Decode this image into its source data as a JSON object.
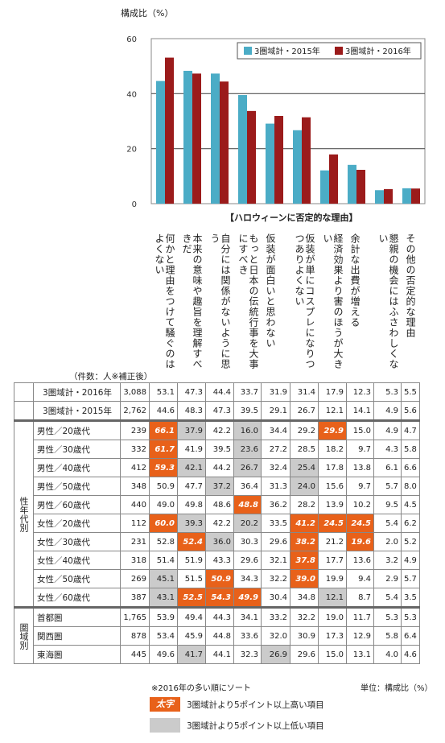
{
  "chart_data": {
    "type": "bar",
    "ylabel": "構成比（%）",
    "ylim": [
      0,
      60
    ],
    "yticks": [
      0,
      20,
      40,
      60
    ],
    "grid": true,
    "legend_placement": "top-right",
    "series": [
      {
        "name": "3圏域計・2015年",
        "color": "#4bacc6",
        "values": [
          44.6,
          48.3,
          47.3,
          39.5,
          29.1,
          26.7,
          12.1,
          14.1,
          4.9,
          5.6
        ]
      },
      {
        "name": "3圏域計・2016年",
        "color": "#9b1b1b",
        "values": [
          53.1,
          47.3,
          44.4,
          33.7,
          31.9,
          31.4,
          17.9,
          12.3,
          5.3,
          5.5
        ]
      }
    ],
    "category_group_label": "【ハロウィーンに否定的な理由】",
    "categories": [
      "何かと理由をつけて騒ぐのはよくない",
      "本来の意味や趣旨を理解すべきだ",
      "自分には関係がないように思う",
      "もっと日本の伝統行事を大事にすべき",
      "仮装が面白いと思わない",
      "仮装が単にコスプレになりつつありよくない",
      "経済効果より害のほうが大きい",
      "余計な出費が増える",
      "懇親の機会にはふさわしくない",
      "その他の否定的な理由"
    ]
  },
  "table": {
    "count_header": "（件数：人※補正後）",
    "rows": [
      {
        "label": "3圏域計・2016年",
        "count": "3,088",
        "values": [
          "53.1",
          "47.3",
          "44.4",
          "33.7",
          "31.9",
          "31.4",
          "17.9",
          "12.3",
          "5.3",
          "5.5"
        ],
        "marks": [
          "",
          "",
          "",
          "",
          "",
          "",
          "",
          "",
          "",
          ""
        ]
      },
      {
        "label": "3圏域計・2015年",
        "count": "2,762",
        "values": [
          "44.6",
          "48.3",
          "47.3",
          "39.5",
          "29.1",
          "26.7",
          "12.1",
          "14.1",
          "4.9",
          "5.6"
        ],
        "marks": [
          "",
          "",
          "",
          "",
          "",
          "",
          "",
          "",
          "",
          ""
        ]
      },
      {
        "group": "性年代別",
        "label": "男性／20歳代",
        "count": "239",
        "values": [
          "66.1",
          "37.9",
          "42.2",
          "16.0",
          "34.4",
          "29.2",
          "29.9",
          "15.0",
          "4.9",
          "4.7"
        ],
        "marks": [
          "h",
          "l",
          "",
          "l",
          "",
          "",
          "h",
          "",
          "",
          ""
        ]
      },
      {
        "label": "男性／30歳代",
        "count": "332",
        "values": [
          "61.7",
          "41.9",
          "39.5",
          "23.6",
          "27.2",
          "28.5",
          "18.2",
          "9.7",
          "4.3",
          "5.8"
        ],
        "marks": [
          "h",
          "",
          "",
          "l",
          "",
          "",
          "",
          "",
          "",
          ""
        ]
      },
      {
        "label": "男性／40歳代",
        "count": "412",
        "values": [
          "59.3",
          "42.1",
          "44.2",
          "26.7",
          "32.4",
          "25.4",
          "17.8",
          "13.8",
          "6.1",
          "6.6"
        ],
        "marks": [
          "h",
          "l",
          "",
          "l",
          "",
          "l",
          "",
          "",
          "",
          ""
        ]
      },
      {
        "label": "男性／50歳代",
        "count": "348",
        "values": [
          "50.9",
          "47.7",
          "37.2",
          "36.4",
          "31.3",
          "24.0",
          "15.6",
          "9.7",
          "5.7",
          "8.0"
        ],
        "marks": [
          "",
          "",
          "l",
          "",
          "",
          "l",
          "",
          "",
          "",
          ""
        ]
      },
      {
        "label": "男性／60歳代",
        "count": "440",
        "values": [
          "49.0",
          "49.8",
          "48.6",
          "48.8",
          "36.2",
          "28.2",
          "13.9",
          "10.2",
          "9.5",
          "4.5"
        ],
        "marks": [
          "",
          "",
          "",
          "h",
          "",
          "",
          "",
          "",
          "",
          ""
        ]
      },
      {
        "label": "女性／20歳代",
        "count": "112",
        "values": [
          "60.0",
          "39.3",
          "42.2",
          "20.2",
          "33.5",
          "41.2",
          "24.5",
          "24.5",
          "5.4",
          "6.2"
        ],
        "marks": [
          "h",
          "l",
          "",
          "l",
          "",
          "h",
          "h",
          "h",
          "",
          ""
        ]
      },
      {
        "label": "女性／30歳代",
        "count": "231",
        "values": [
          "52.8",
          "52.4",
          "36.0",
          "30.3",
          "29.6",
          "38.2",
          "21.2",
          "19.6",
          "2.0",
          "5.2"
        ],
        "marks": [
          "",
          "h",
          "l",
          "",
          "",
          "h",
          "",
          "h",
          "",
          ""
        ]
      },
      {
        "label": "女性／40歳代",
        "count": "318",
        "values": [
          "51.4",
          "51.9",
          "43.3",
          "29.6",
          "32.1",
          "37.8",
          "17.7",
          "13.6",
          "3.2",
          "4.9"
        ],
        "marks": [
          "",
          "",
          "",
          "",
          "",
          "h",
          "",
          "",
          "",
          ""
        ]
      },
      {
        "label": "女性／50歳代",
        "count": "269",
        "values": [
          "45.1",
          "51.5",
          "50.9",
          "34.3",
          "32.2",
          "39.0",
          "19.9",
          "9.4",
          "2.9",
          "5.7"
        ],
        "marks": [
          "l",
          "",
          "h",
          "",
          "",
          "h",
          "",
          "",
          "",
          ""
        ]
      },
      {
        "label": "女性／60歳代",
        "count": "387",
        "values": [
          "43.1",
          "52.5",
          "54.3",
          "49.9",
          "30.4",
          "34.8",
          "12.1",
          "8.7",
          "5.4",
          "3.5"
        ],
        "marks": [
          "l",
          "h",
          "h",
          "h",
          "",
          "",
          "l",
          "",
          "",
          ""
        ]
      },
      {
        "group": "圏域別",
        "label": "首都圏",
        "count": "1,765",
        "values": [
          "53.9",
          "49.4",
          "44.3",
          "34.1",
          "33.2",
          "32.2",
          "19.0",
          "11.7",
          "5.3",
          "5.3"
        ],
        "marks": [
          "",
          "",
          "",
          "",
          "",
          "",
          "",
          "",
          "",
          ""
        ]
      },
      {
        "label": "関西圏",
        "count": "878",
        "values": [
          "53.4",
          "45.9",
          "44.8",
          "33.6",
          "32.0",
          "30.9",
          "17.3",
          "12.9",
          "5.8",
          "6.4"
        ],
        "marks": [
          "",
          "",
          "",
          "",
          "",
          "",
          "",
          "",
          "",
          ""
        ]
      },
      {
        "label": "東海圏",
        "count": "445",
        "values": [
          "49.6",
          "41.7",
          "44.1",
          "32.3",
          "26.9",
          "29.6",
          "15.0",
          "13.1",
          "4.0",
          "4.6"
        ],
        "marks": [
          "",
          "l",
          "",
          "",
          "l",
          "",
          "",
          "",
          "",
          ""
        ]
      }
    ]
  },
  "notes": {
    "sort_note": "※2016年の多い順にソート",
    "unit_note": "単位：構成比（%）",
    "legend_high_sample": "太字",
    "legend_high_text": "3圏域計より5ポイント以上高い項目",
    "legend_low_text": "3圏域計より5ポイント以上低い項目"
  },
  "colors": {
    "high": "#e8611a",
    "low": "#cbcbcb"
  }
}
